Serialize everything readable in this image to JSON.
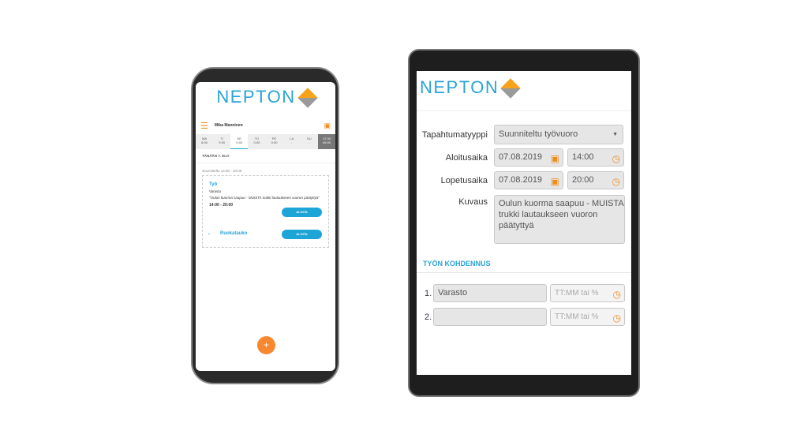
{
  "brand": "NEPTON",
  "phone": {
    "user": "Mika Manninen",
    "days": [
      {
        "d": "MA",
        "h": "8:00"
      },
      {
        "d": "TI",
        "h": "9:30"
      },
      {
        "d": "KE",
        "h": "0:00"
      },
      {
        "d": "TO",
        "h": "0:00"
      },
      {
        "d": "PE",
        "h": "0:00"
      },
      {
        "d": "LA",
        "h": "-"
      },
      {
        "d": "SU",
        "h": "-"
      }
    ],
    "total": {
      "a": "17:30",
      "b": "40:00"
    },
    "today": "TÄNÄÄN 7. ELO",
    "planned": "Suunniteltu 14:00 - 20:00",
    "task": {
      "title": "Työ",
      "place": "Varasto",
      "note": "\"Oulun kuorma saapuu - MUISTA trukki lautaukseen vuoron päätyttyä\"",
      "time": "14:00 - 20:00",
      "button": "ALOITA"
    },
    "break": {
      "title": "Ruokatauko",
      "button": "ALOITA"
    },
    "fab": "+"
  },
  "tablet": {
    "type_label": "Tapahtumatyyppi",
    "type_value": "Suunniteltu työvuoro",
    "start_label": "Aloitusaika",
    "start_date": "07.08.2019",
    "start_time": "14:00",
    "end_label": "Lopetusaika",
    "end_date": "07.08.2019",
    "end_time": "20:00",
    "desc_label": "Kuvaus",
    "desc_value": "Oulun kuorma saapuu - MUISTA trukki lautaukseen vuoron päätyttyä",
    "section": "TYÖN KOHDENNUS",
    "rows": [
      {
        "n": "1.",
        "value": "Varasto",
        "placeholder": "TT:MM tai %"
      },
      {
        "n": "2.",
        "value": "",
        "placeholder": "TT:MM tai %"
      }
    ]
  },
  "colors": {
    "accent": "#2aa3d6",
    "orange": "#f28c1e"
  }
}
